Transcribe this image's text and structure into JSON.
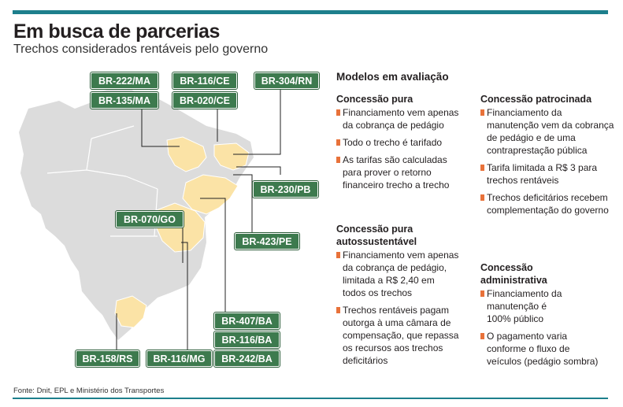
{
  "header": {
    "title": "Em busca de parcerias",
    "subtitle": "Trechos considerados rentáveis pelo governo"
  },
  "colors": {
    "accent_bar": "#1d7f8c",
    "badge_fill": "#3d7a4e",
    "map_land": "#dcdcdc",
    "map_highlight": "#fbe3a6",
    "bullet": "#e8723a"
  },
  "routes": [
    "BR-222/MA",
    "BR-116/CE",
    "BR-304/RN",
    "BR-135/MA",
    "BR-020/CE",
    "BR-230/PB",
    "BR-070/GO",
    "BR-423/PE",
    "BR-407/BA",
    "BR-116/BA",
    "BR-242/BA",
    "BR-158/RS",
    "BR-116/MG"
  ],
  "models": {
    "heading": "Modelos em avaliação",
    "concessao_pura": {
      "title": "Concessão pura",
      "items": [
        "Financiamento vem apenas da cobrança de pedágio",
        "Todo o trecho é tarifado",
        "As tarifas são calculadas para prover o retorno financeiro trecho a trecho"
      ]
    },
    "concessao_autossustentavel": {
      "title": "Concessão pura autossustentável",
      "items": [
        "Financiamento vem apenas da cobrança de pedágio, limitada a R$ 2,40 em todos os trechos",
        "Trechos rentáveis pagam outorga à uma câmara de compensação, que repassa os recursos aos trechos deficitários"
      ]
    },
    "concessao_patrocinada": {
      "title": "Concessão patrocinada",
      "items": [
        "Financiamento da manutenção vem da cobrança de pedágio e de uma contraprestação pública",
        "Tarifa limitada a R$ 3 para trechos rentáveis",
        "Trechos deficitários recebem complementação do governo"
      ]
    },
    "concessao_administrativa": {
      "title": "Concessão administrativa",
      "items": [
        "Financiamento da manutenção é 100% público",
        "O pagamento varia conforme o fluxo de veículos (pedágio sombra)"
      ]
    }
  },
  "source": "Fonte: Dnit, EPL e Ministério dos Transportes"
}
